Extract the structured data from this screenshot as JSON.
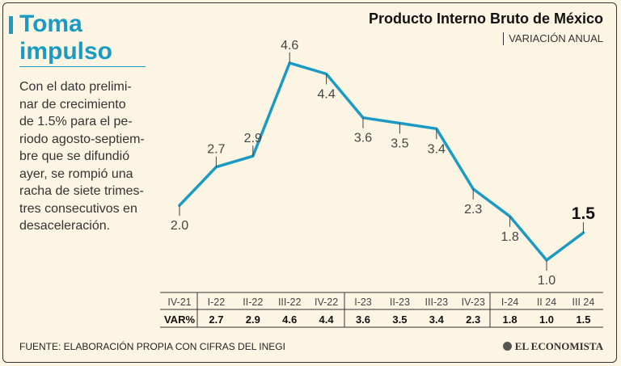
{
  "headline": "Toma\nimpulso",
  "summary": "Con el dato prelimi-\nnar de crecimiento\nde 1.5% para el pe-\nriodo agosto-septiem-\nbre que se difundió\nayer, se rompió una\nracha de siete trimes-\ntres consecutivos en\ndesaceleración.",
  "source": "FUENTE: ELABORACIÓN PROPIA CON CIFRAS DEL INEGI",
  "brand": "EL ECONOMISTA",
  "brand_icon": "globe-icon",
  "colors": {
    "accent": "#1b9ac3",
    "line": "#1b9ac3",
    "background": "#fdf5e3",
    "text": "#222222"
  },
  "chart_data": {
    "type": "line",
    "title": "Producto Interno Bruto de México",
    "subtitle": "VARIACIÓN ANUAL",
    "categories": [
      "IV-21",
      "I-22",
      "II-22",
      "III-22",
      "IV-22",
      "I-23",
      "II-23",
      "III-23",
      "IV-23",
      "I-24",
      "II 24",
      "III 24"
    ],
    "values": [
      2.0,
      2.7,
      2.9,
      4.6,
      4.4,
      3.6,
      3.5,
      3.4,
      2.3,
      1.8,
      1.0,
      1.5
    ],
    "point_labels": [
      "2.0",
      "2.7",
      "2.9",
      "4.6",
      "4.4",
      "3.6",
      "3.5",
      "3.4",
      "2.3",
      "1.8",
      "1.0",
      "1.5"
    ],
    "table_row_label": "VAR%",
    "table_values": [
      "2.7",
      "2.9",
      "4.6",
      "4.4",
      "3.6",
      "3.5",
      "3.4",
      "2.3",
      "1.8",
      "1.0",
      "1.5"
    ],
    "highlight_last": true,
    "grid": false,
    "legend": "none",
    "ylim": [
      1.0,
      4.6
    ]
  }
}
